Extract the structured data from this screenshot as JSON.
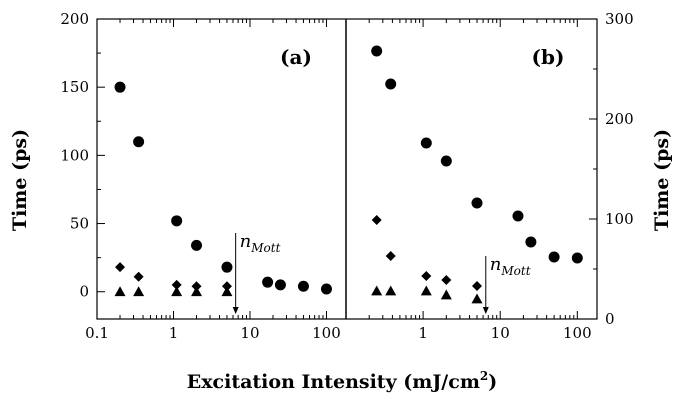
{
  "chart_data": [
    {
      "type": "scatter",
      "panel_label": "(a)",
      "ylabel": "Time (ps)",
      "ylim": [
        -20,
        200
      ],
      "yticks": [
        "0",
        "50",
        "100",
        "150",
        "200"
      ],
      "xscale": "log",
      "xlim": [
        0.1,
        180
      ],
      "xticks": [
        "0.1",
        "1",
        "10",
        "100"
      ],
      "annotation": {
        "base": "n",
        "sub": "Mott",
        "x": 6.5
      },
      "series": [
        {
          "marker": "circle",
          "points": [
            [
              0.2,
              150
            ],
            [
              0.35,
              110
            ],
            [
              1.1,
              52
            ],
            [
              2,
              34
            ],
            [
              5,
              18
            ],
            [
              17,
              7
            ],
            [
              25,
              5
            ],
            [
              50,
              4
            ],
            [
              100,
              2
            ]
          ]
        },
        {
          "marker": "diamond",
          "points": [
            [
              0.2,
              18
            ],
            [
              0.35,
              11
            ],
            [
              1.1,
              5
            ],
            [
              2,
              4
            ],
            [
              5,
              4
            ]
          ]
        },
        {
          "marker": "triangle",
          "points": [
            [
              0.2,
              0
            ],
            [
              0.35,
              0
            ],
            [
              1.1,
              0
            ],
            [
              2,
              0
            ],
            [
              5,
              0
            ]
          ]
        }
      ]
    },
    {
      "type": "scatter",
      "panel_label": "(b)",
      "ylabel": "Time (ps)",
      "ylim": [
        0,
        300
      ],
      "yticks": [
        "0",
        "100",
        "200",
        "300"
      ],
      "xscale": "log",
      "xlim": [
        0.1,
        180
      ],
      "xticks": [
        "1",
        "10",
        "100"
      ],
      "annotation": {
        "base": "n",
        "sub": "Mott",
        "x": 6.5
      },
      "series": [
        {
          "marker": "circle",
          "points": [
            [
              0.25,
              268
            ],
            [
              0.38,
              235
            ],
            [
              1.1,
              176
            ],
            [
              2,
              158
            ],
            [
              5,
              116
            ],
            [
              17,
              103
            ],
            [
              25,
              77
            ],
            [
              50,
              62
            ],
            [
              100,
              61
            ]
          ]
        },
        {
          "marker": "diamond",
          "points": [
            [
              0.25,
              99
            ],
            [
              0.38,
              63
            ],
            [
              1.1,
              43
            ],
            [
              2,
              39
            ],
            [
              5,
              33
            ]
          ]
        },
        {
          "marker": "triangle",
          "points": [
            [
              0.25,
              28
            ],
            [
              0.38,
              28
            ],
            [
              1.1,
              28
            ],
            [
              2,
              24
            ],
            [
              5,
              20
            ]
          ]
        }
      ]
    }
  ],
  "xlabel": "Excitation Intensity (mJ/cm",
  "xlabel_sup": "2",
  "xlabel_end": ")"
}
